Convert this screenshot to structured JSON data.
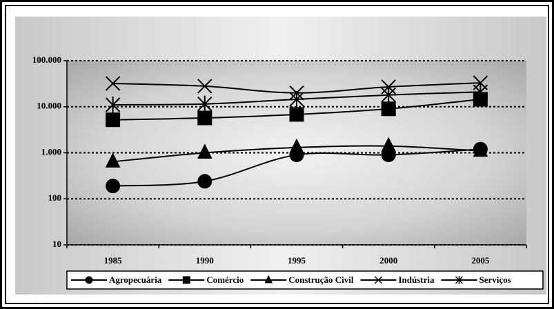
{
  "chart_data": {
    "type": "line",
    "categories": [
      "1985",
      "1990",
      "1995",
      "2000",
      "2005"
    ],
    "series": [
      {
        "name": "Agropecuária",
        "color": "#000000",
        "marker": "circle",
        "values": [
          190,
          240,
          900,
          900,
          1200
        ]
      },
      {
        "name": "Comércio",
        "color": "#000000",
        "marker": "square",
        "values": [
          5200,
          5700,
          6800,
          9000,
          14500
        ]
      },
      {
        "name": "Construção Civil",
        "color": "#000000",
        "marker": "triangle",
        "values": [
          640,
          1000,
          1300,
          1400,
          1100
        ]
      },
      {
        "name": "Indústria",
        "color": "#000000",
        "marker": "x",
        "values": [
          32000,
          28000,
          20000,
          27000,
          33000
        ]
      },
      {
        "name": "Serviços",
        "color": "#000000",
        "marker": "asterisk",
        "values": [
          11000,
          11500,
          14500,
          18000,
          21000
        ]
      }
    ],
    "log_scale": true,
    "ylim": [
      10,
      100000
    ],
    "yticks": [
      10,
      100,
      {
        "value": 1000,
        "label": "1.000"
      },
      {
        "value": 10000,
        "label": "10.000"
      },
      {
        "value": 100000,
        "label": "100.000"
      }
    ],
    "grid": true,
    "legend": "bottom"
  }
}
